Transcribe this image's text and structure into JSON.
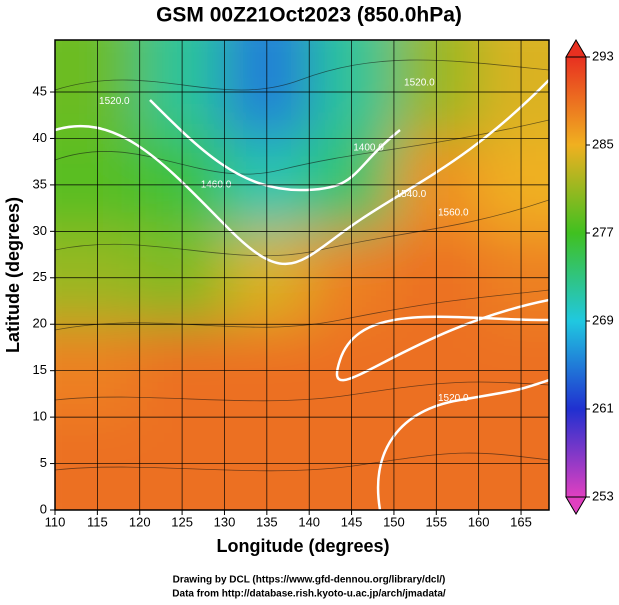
{
  "chart_data": {
    "type": "field-map",
    "title": "GSM 00Z21Oct2023 (850.0hPa)",
    "x_label": "Longitude (degrees)",
    "y_label": "Latitude  (degrees)",
    "xlim": [
      110,
      168.3
    ],
    "ylim": [
      0,
      50.6
    ],
    "xticks": [
      110,
      115,
      120,
      125,
      130,
      135,
      140,
      145,
      150,
      155,
      160,
      165
    ],
    "yticks": [
      0,
      5,
      10,
      15,
      20,
      25,
      30,
      35,
      40,
      45
    ],
    "grid": true,
    "field_lon": [
      115,
      125,
      135,
      145,
      155,
      165
    ],
    "field_lat": [
      45,
      35,
      25,
      15,
      5
    ],
    "field_values": [
      [
        279,
        272,
        265,
        272,
        281,
        284
      ],
      [
        278,
        276,
        271,
        274,
        287,
        285
      ],
      [
        281,
        280,
        284,
        288,
        289,
        288
      ],
      [
        288,
        289,
        289,
        289,
        289,
        289
      ],
      [
        289,
        289,
        289,
        289,
        289,
        289
      ]
    ],
    "colorbar_lim": [
      253,
      293
    ],
    "colorbar_ticks": [
      253,
      261,
      269,
      277,
      285,
      293
    ],
    "colormap": [
      "#e040c0",
      "#2030d0",
      "#20c8e0",
      "#40c020",
      "#f0b020",
      "#e83020"
    ],
    "contour_labels": [
      {
        "text": "1520.0",
        "lon": 117,
        "lat": 44
      },
      {
        "text": "1460.0",
        "lon": 129,
        "lat": 35
      },
      {
        "text": "1400.0",
        "lon": 147,
        "lat": 39
      },
      {
        "text": "1520.0",
        "lon": 153,
        "lat": 46
      },
      {
        "text": "1540.0",
        "lon": 152,
        "lat": 34
      },
      {
        "text": "1560.0",
        "lon": 157,
        "lat": 32
      },
      {
        "text": "1520.0",
        "lon": 157,
        "lat": 12
      }
    ],
    "credits": [
      "Drawing by DCL (https://www.gfd-dennou.org/library/dcl/)",
      "Data from http://database.rish.kyoto-u.ac.jp/arch/jmadata/"
    ]
  }
}
